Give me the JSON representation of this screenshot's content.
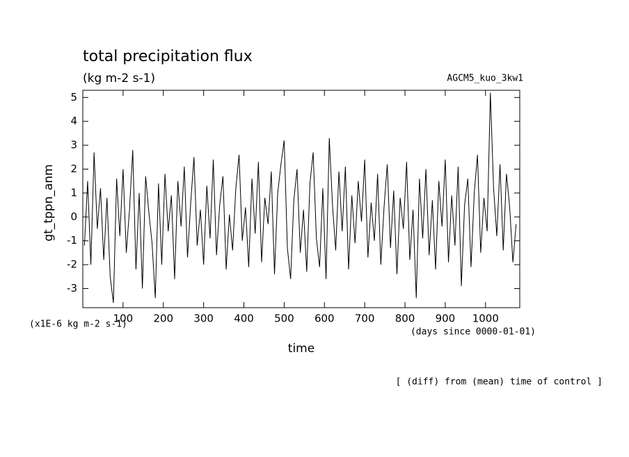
{
  "chart_data": {
    "type": "line",
    "title": "total precipitation flux",
    "subtitle": "(kg m-2 s-1)",
    "run_label": "AGCM5_kuo_3kw1",
    "y_label": "gt_tppn_anm",
    "y_units": "(x1E-6 kg m-2 s-1)",
    "x_units": "(days since 0000-01-01)",
    "x_label": "time",
    "footer": "[ (diff) from (mean) time of control ]",
    "color": "#000000",
    "xlim": [
      0,
      1085
    ],
    "ylim": [
      -3.8,
      5.3
    ],
    "xticks": [
      100,
      200,
      300,
      400,
      500,
      600,
      700,
      800,
      900,
      1000
    ],
    "yticks": [
      -3,
      -2,
      -1,
      0,
      1,
      2,
      3,
      4,
      5
    ],
    "x": [
      4,
      12,
      20,
      28,
      36,
      44,
      52,
      60,
      68,
      76,
      84,
      92,
      100,
      108,
      116,
      124,
      132,
      140,
      148,
      156,
      164,
      172,
      180,
      188,
      196,
      204,
      212,
      220,
      228,
      236,
      244,
      252,
      260,
      268,
      276,
      284,
      292,
      300,
      308,
      316,
      324,
      332,
      340,
      348,
      356,
      364,
      372,
      380,
      388,
      396,
      404,
      412,
      420,
      428,
      436,
      444,
      452,
      460,
      468,
      476,
      484,
      492,
      500,
      508,
      516,
      524,
      532,
      540,
      548,
      556,
      564,
      572,
      580,
      588,
      596,
      604,
      612,
      620,
      628,
      636,
      644,
      652,
      660,
      668,
      676,
      684,
      692,
      700,
      708,
      716,
      724,
      732,
      740,
      748,
      756,
      764,
      772,
      780,
      788,
      796,
      804,
      812,
      820,
      828,
      836,
      844,
      852,
      860,
      868,
      876,
      884,
      892,
      900,
      908,
      916,
      924,
      932,
      940,
      948,
      956,
      964,
      972,
      980,
      988,
      996,
      1004,
      1012,
      1020,
      1028,
      1036,
      1044,
      1052,
      1060,
      1068,
      1076
    ],
    "values": [
      -1.2,
      1.5,
      -2.0,
      2.7,
      -0.5,
      1.2,
      -1.8,
      0.8,
      -2.5,
      -3.6,
      1.6,
      -0.8,
      2.0,
      -1.5,
      0.3,
      2.8,
      -2.2,
      1.0,
      -3.0,
      1.7,
      0.2,
      -1.1,
      -3.4,
      1.4,
      -2.0,
      1.8,
      -0.6,
      0.9,
      -2.6,
      1.5,
      -0.4,
      2.1,
      -1.7,
      0.6,
      2.5,
      -1.2,
      0.3,
      -2.0,
      1.3,
      -0.9,
      2.4,
      -1.6,
      0.5,
      1.7,
      -2.2,
      0.1,
      -1.4,
      1.2,
      2.6,
      -1.0,
      0.4,
      -2.1,
      1.6,
      -0.7,
      2.3,
      -1.9,
      0.8,
      -0.3,
      1.9,
      -2.4,
      1.0,
      2.2,
      3.2,
      -1.3,
      -2.6,
      0.7,
      2.0,
      -1.5,
      0.3,
      -2.3,
      1.4,
      2.7,
      -0.9,
      -2.1,
      1.2,
      -2.6,
      3.3,
      0.5,
      -1.4,
      1.9,
      -0.6,
      2.1,
      -2.2,
      0.9,
      -1.1,
      1.5,
      -0.2,
      2.4,
      -1.7,
      0.6,
      -1.0,
      1.8,
      -2.0,
      0.4,
      2.2,
      -1.3,
      1.1,
      -2.4,
      0.8,
      -0.5,
      2.3,
      -1.8,
      0.3,
      -3.4,
      1.6,
      -0.9,
      2.0,
      -1.6,
      0.7,
      -2.2,
      1.5,
      -0.4,
      2.4,
      -1.9,
      0.9,
      -1.2,
      2.1,
      -2.9,
      0.5,
      1.6,
      -2.1,
      1.0,
      2.6,
      -1.5,
      0.8,
      -0.6,
      5.2,
      1.2,
      -0.8,
      2.2,
      -1.4,
      1.8,
      0.4,
      -1.9,
      -0.3
    ]
  }
}
